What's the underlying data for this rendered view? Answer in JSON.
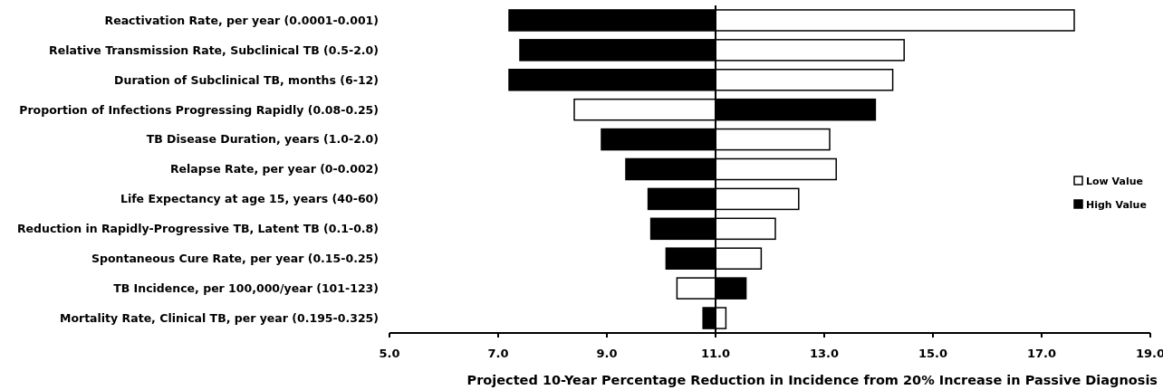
{
  "chart_data": {
    "type": "bar",
    "orientation": "horizontal",
    "xlabel": "Projected 10-Year Percentage Reduction in Incidence from 20% Increase in Passive Diagnosis",
    "categories": [
      "Reactivation Rate, per year (0.0001-0.001)",
      "Relative Transmission Rate, Subclinical TB (0.5-2.0)",
      "Duration of Subclinical TB, months (6-12)",
      "Proportion of Infections Progressing Rapidly (0.08-0.25)",
      "TB Disease Duration, years (1.0-2.0)",
      "Relapse Rate, per year (0-0.002)",
      "Life Expectancy at age 15, years (40-60)",
      "Reduction in Rapidly-Progressive TB, Latent TB (0.1-0.8)",
      "Spontaneous Cure Rate, per year (0.15-0.25)",
      "TB Incidence, per 100,000/year (101-123)",
      "Mortality Rate, Clinical TB, per year (0.195-0.325)"
    ],
    "ref_lines": [
      {
        "axis": "x",
        "value": 11
      }
    ],
    "series": [
      {
        "name": "Low Value",
        "color": "#ffffff",
        "base": [
          11,
          11,
          11,
          11,
          11,
          11,
          11,
          11,
          11,
          11,
          11
        ],
        "values": [
          6.6,
          3.47,
          3.26,
          -2.6,
          2.1,
          2.22,
          1.53,
          1.1,
          0.84,
          -0.71,
          0.19
        ]
      },
      {
        "name": "High Value",
        "color": "#000000",
        "base": [
          11,
          11,
          11,
          11,
          11,
          11,
          11,
          11,
          11,
          11,
          11
        ],
        "values": [
          -3.8,
          -3.6,
          -3.8,
          2.94,
          -2.1,
          -1.65,
          -1.24,
          -1.19,
          -0.91,
          0.56,
          -0.23
        ]
      }
    ],
    "xlim": [
      5,
      19
    ],
    "xticks": [
      {
        "value": 5,
        "label": "5.0"
      },
      {
        "value": 7,
        "label": "7.0"
      },
      {
        "value": 9,
        "label": "9.0"
      },
      {
        "value": 11,
        "label": "11.0"
      },
      {
        "value": 13,
        "label": "13.0"
      },
      {
        "value": 15,
        "label": "15.0"
      },
      {
        "value": 17,
        "label": "17.0"
      },
      {
        "value": 19,
        "label": "19.0"
      }
    ],
    "grid": false,
    "legend": "right"
  }
}
